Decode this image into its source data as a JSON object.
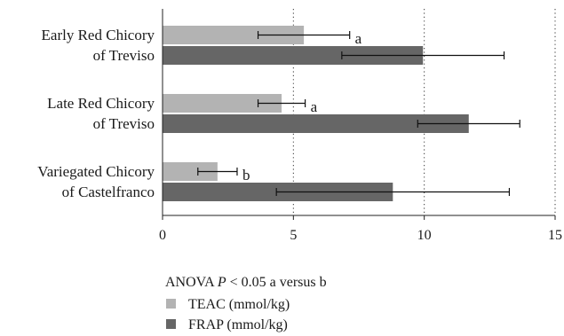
{
  "chart_data": {
    "type": "bar",
    "orientation": "horizontal",
    "categories": [
      [
        "Early Red Chicory",
        "of Treviso"
      ],
      [
        "Late Red Chicory",
        "of Treviso"
      ],
      [
        "Variegated Chicory",
        "of Castelfranco"
      ]
    ],
    "series": [
      {
        "name": "TEAC (mmol/kg)",
        "color": "#b3b3b3",
        "values": [
          5.4,
          4.55,
          2.1
        ],
        "errors": [
          1.75,
          0.9,
          0.75
        ],
        "letters": [
          "a",
          "a",
          "b"
        ]
      },
      {
        "name": "FRAP (mmol/kg)",
        "color": "#666666",
        "values": [
          9.95,
          11.7,
          8.8
        ],
        "errors": [
          3.1,
          1.95,
          4.45
        ]
      }
    ],
    "xlim": [
      0,
      15
    ],
    "xticks": [
      "0",
      "5",
      "10",
      "15"
    ],
    "grid": "vertical-dotted",
    "legend_position": "bottom",
    "annotation": {
      "prefix": "ANOVA ",
      "p": "P",
      "suffix": " < 0.05 a versus b"
    }
  }
}
